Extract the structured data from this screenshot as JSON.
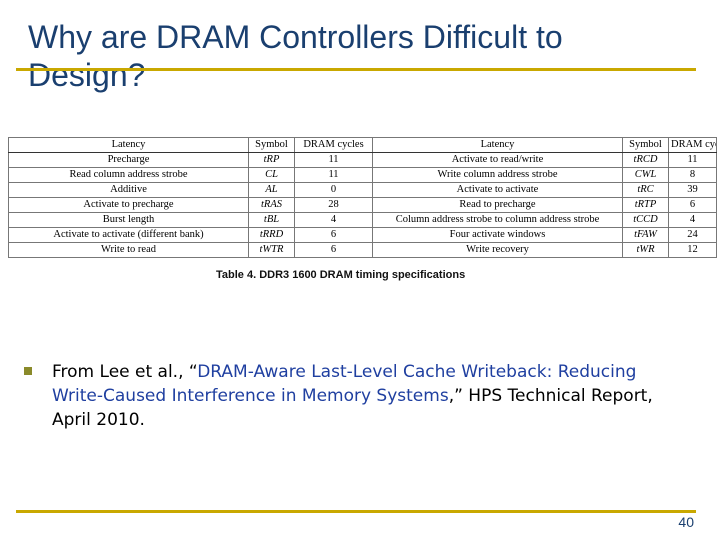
{
  "slide": {
    "title": "Why are DRAM Controllers Difficult to Design?",
    "page_number": "40"
  },
  "table": {
    "headers": [
      "Latency",
      "Symbol",
      "DRAM cycles",
      "Latency",
      "Symbol",
      "DRAM cycles"
    ],
    "rows": [
      [
        "Precharge",
        "tRP",
        "11",
        "Activate to read/write",
        "tRCD",
        "11"
      ],
      [
        "Read column address strobe",
        "CL",
        "11",
        "Write column address strobe",
        "CWL",
        "8"
      ],
      [
        "Additive",
        "AL",
        "0",
        "Activate to activate",
        "tRC",
        "39"
      ],
      [
        "Activate to precharge",
        "tRAS",
        "28",
        "Read to precharge",
        "tRTP",
        "6"
      ],
      [
        "Burst length",
        "tBL",
        "4",
        "Column address strobe to column address strobe",
        "tCCD",
        "4"
      ],
      [
        "Activate to activate (different bank)",
        "tRRD",
        "6",
        "Four activate windows",
        "tFAW",
        "24"
      ],
      [
        "Write to read",
        "tWTR",
        "6",
        "Write recovery",
        "tWR",
        "12"
      ]
    ],
    "caption": "Table 4. DDR3 1600 DRAM timing specifications"
  },
  "citation": {
    "prefix": "From Lee et al., “",
    "title": "DRAM-Aware Last-Level Cache Writeback: Reducing Write-Caused Interference in Memory Systems",
    "suffix": ",” HPS Technical Report, April 2010."
  },
  "colors": {
    "title": "#1a3f6f",
    "rule": "#c9a800",
    "bullet": "#8a8a2a",
    "link": "#1f3fa0"
  }
}
